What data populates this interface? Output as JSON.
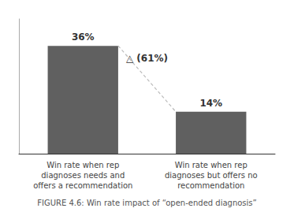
{
  "chart_data": {
    "type": "bar",
    "title": "FIGURE 4.6: Win rate impact of “open-ended diagnosis”",
    "categories": [
      "Win rate when rep\ndiagnoses needs and\noffers a recommendation",
      "Win rate when rep\ndiagnoses but offers no\nrecommendation"
    ],
    "values": [
      36,
      14
    ],
    "value_labels": [
      "36%",
      "14%"
    ],
    "data_labels": true,
    "annotation": "△ (61%)",
    "color": "#606060",
    "ylim": [
      0,
      45
    ],
    "tick_labels": "x",
    "grid": false
  }
}
